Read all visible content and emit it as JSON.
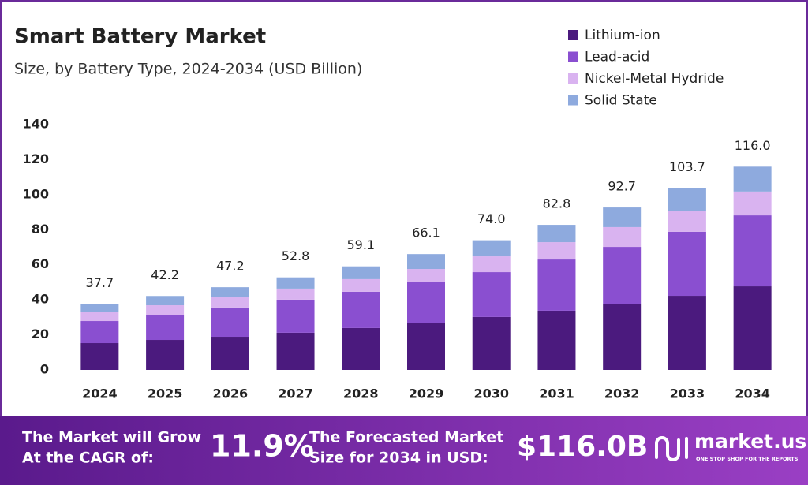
{
  "chart_data": {
    "type": "stacked-bar",
    "title": "Smart Battery Market",
    "subtitle": "Size, by Battery Type, 2024-2034 (USD Billion)",
    "categories": [
      "2024",
      "2025",
      "2026",
      "2027",
      "2028",
      "2029",
      "2030",
      "2031",
      "2032",
      "2033",
      "2034"
    ],
    "series": [
      {
        "name": "Lithium-ion",
        "color": "#4b1a7e",
        "values": [
          15.3,
          17.1,
          18.9,
          21.2,
          23.9,
          27.0,
          30.2,
          33.8,
          37.8,
          42.3,
          47.7
        ]
      },
      {
        "name": "Lead-acid",
        "color": "#8a4fd0",
        "values": [
          12.6,
          14.4,
          16.7,
          18.9,
          20.7,
          23.0,
          25.6,
          29.2,
          32.4,
          36.5,
          40.5
        ]
      },
      {
        "name": "Nickel-Metal Hydride",
        "color": "#d9b3f0",
        "values": [
          5.0,
          5.4,
          5.8,
          6.3,
          7.2,
          7.6,
          9.0,
          9.9,
          11.3,
          12.1,
          13.6
        ]
      },
      {
        "name": "Solid State",
        "color": "#8eaade",
        "values": [
          4.8,
          5.3,
          5.8,
          6.4,
          7.3,
          8.5,
          9.2,
          9.9,
          11.2,
          12.8,
          14.2
        ]
      }
    ],
    "totals": {
      "values": [
        37.7,
        42.2,
        47.2,
        52.8,
        59.1,
        66.1,
        74.0,
        82.8,
        92.7,
        103.7,
        116.0
      ],
      "value_labels": [
        "37.7",
        "42.2",
        "47.2",
        "52.8",
        "59.1",
        "66.1",
        "74.0",
        "82.8",
        "92.7",
        "103.7",
        "116.0"
      ]
    },
    "ylim": [
      0,
      140
    ],
    "yticks": [
      0,
      20,
      40,
      60,
      80,
      100,
      120,
      140
    ],
    "grid": false,
    "legend": "top-right"
  },
  "footer": {
    "cagr_text": [
      "The Market will Grow",
      "At the CAGR of:"
    ],
    "cagr": "11.9%",
    "forecast_text": [
      "The Forecasted Market",
      "Size for 2034 in USD:"
    ],
    "forecast": "$116.0B",
    "brand": "market.us",
    "tagline": "ONE STOP SHOP FOR THE REPORTS"
  }
}
